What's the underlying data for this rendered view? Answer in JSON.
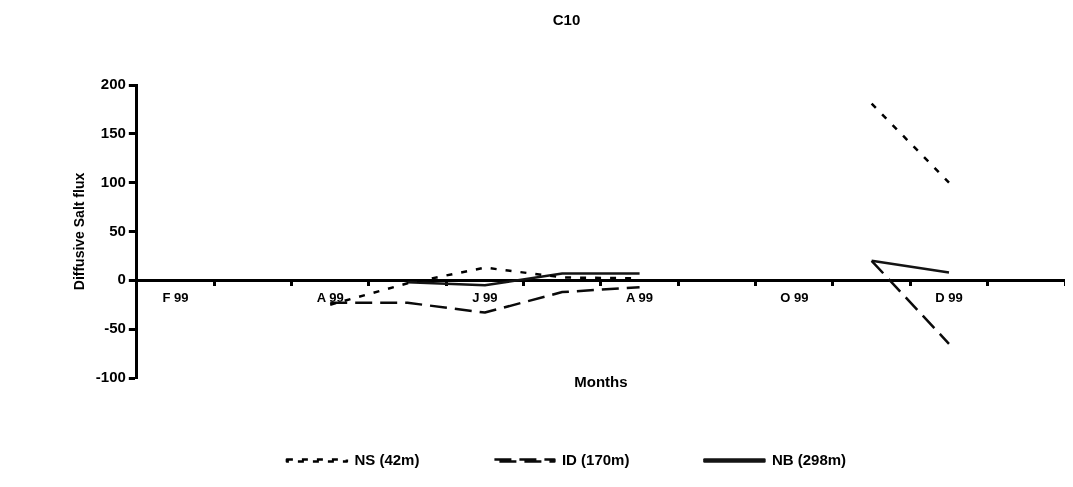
{
  "chart_data": {
    "type": "line",
    "title": "C10",
    "xlabel": "Months",
    "ylabel": "Diffusive Salt flux",
    "categories": [
      "F 99",
      null,
      "A 99",
      null,
      "J 99",
      null,
      "A 99",
      null,
      "O 99",
      null,
      "D 99",
      null
    ],
    "series": [
      {
        "name": "NS (42m)",
        "color": "#000000",
        "line_style": "dotted",
        "values": [
          null,
          null,
          -25,
          -3,
          13,
          3,
          2,
          null,
          null,
          181,
          100,
          null
        ]
      },
      {
        "name": "ID (170m)",
        "color": "#0a0a0a",
        "line_style": "dashed",
        "values": [
          null,
          null,
          -23,
          -23,
          -33,
          -12,
          -7,
          null,
          null,
          20,
          -65,
          null
        ]
      },
      {
        "name": "NB (298m)",
        "color": "#141414",
        "line_style": "solid",
        "values": [
          null,
          null,
          null,
          -2,
          -5,
          7,
          7,
          null,
          null,
          20,
          8,
          null
        ]
      }
    ],
    "ylim": [
      -100,
      200
    ],
    "yticks": [
      -100,
      -50,
      0,
      50,
      100,
      150,
      200
    ],
    "grid": false,
    "legend": "bottom",
    "marker": "none"
  }
}
